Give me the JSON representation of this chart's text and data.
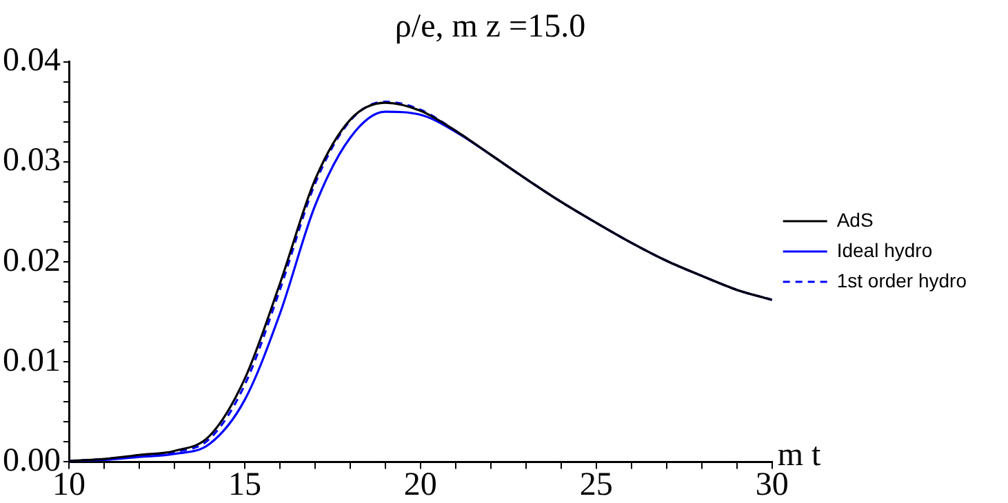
{
  "chart_data": {
    "type": "line",
    "title": "ρ/e, m z =15.0",
    "xlabel": "m t",
    "xlim": [
      10,
      30
    ],
    "xticks": [
      10,
      {
        "value": 11,
        "label": null
      },
      {
        "value": 12,
        "label": null
      },
      {
        "value": 13,
        "label": null
      },
      {
        "value": 14,
        "label": null
      },
      15,
      {
        "value": 16,
        "label": null
      },
      {
        "value": 17,
        "label": null
      },
      {
        "value": 18,
        "label": null
      },
      {
        "value": 19,
        "label": null
      },
      20,
      {
        "value": 21,
        "label": null
      },
      {
        "value": 22,
        "label": null
      },
      {
        "value": 23,
        "label": null
      },
      {
        "value": 24,
        "label": null
      },
      25,
      {
        "value": 26,
        "label": null
      },
      {
        "value": 27,
        "label": null
      },
      {
        "value": 28,
        "label": null
      },
      {
        "value": 29,
        "label": null
      },
      30
    ],
    "ylim": [
      0,
      0.04
    ],
    "yticks": [
      {
        "value": 0,
        "label": "0.00"
      },
      {
        "value": 0.002,
        "label": null
      },
      {
        "value": 0.004,
        "label": null
      },
      {
        "value": 0.006,
        "label": null
      },
      {
        "value": 0.008,
        "label": null
      },
      {
        "value": 0.01,
        "label": "0.01"
      },
      {
        "value": 0.012,
        "label": null
      },
      {
        "value": 0.014,
        "label": null
      },
      {
        "value": 0.016,
        "label": null
      },
      {
        "value": 0.018,
        "label": null
      },
      {
        "value": 0.02,
        "label": "0.02"
      },
      {
        "value": 0.022,
        "label": null
      },
      {
        "value": 0.024,
        "label": null
      },
      {
        "value": 0.026,
        "label": null
      },
      {
        "value": 0.028,
        "label": null
      },
      {
        "value": 0.03,
        "label": "0.03"
      },
      {
        "value": 0.032,
        "label": null
      },
      {
        "value": 0.034,
        "label": null
      },
      {
        "value": 0.036,
        "label": null
      },
      {
        "value": 0.038,
        "label": null
      },
      {
        "value": 0.04,
        "label": "0.04"
      }
    ],
    "x": [
      10,
      11,
      12,
      13,
      14,
      15,
      16,
      17,
      18,
      19,
      20,
      21,
      22,
      23,
      24,
      25,
      26,
      27,
      28,
      29,
      30
    ],
    "series": [
      {
        "name": "AdS",
        "color": "#000000",
        "line_style": "solid",
        "values": [
          0.0001,
          0.0003,
          0.0007,
          0.0011,
          0.0026,
          0.0083,
          0.0178,
          0.0282,
          0.0342,
          0.0359,
          0.0351,
          0.0331,
          0.0307,
          0.0283,
          0.026,
          0.0239,
          0.0219,
          0.0201,
          0.0186,
          0.0172,
          0.0162
        ]
      },
      {
        "name": "Ideal hydro",
        "color": "#0000ff",
        "line_style": "solid",
        "values": [
          0.0001,
          0.0002,
          0.0005,
          0.0008,
          0.0018,
          0.0062,
          0.0148,
          0.0256,
          0.0324,
          0.035,
          0.0347,
          0.033,
          0.0307,
          0.0283,
          0.026,
          0.0239,
          0.0219,
          0.0201,
          0.0186,
          0.0172,
          0.0162
        ]
      },
      {
        "name": "1st order hydro",
        "color": "#0000ff",
        "line_style": "dashed",
        "values": [
          0.0001,
          0.0003,
          0.0006,
          0.001,
          0.0023,
          0.0077,
          0.0172,
          0.0278,
          0.0341,
          0.036,
          0.0352,
          0.0331,
          0.0307,
          0.0283,
          0.026,
          0.0239,
          0.0219,
          0.0201,
          0.0186,
          0.0172,
          0.0162
        ]
      }
    ],
    "grid": false,
    "legend": "right",
    "marker": "none"
  }
}
